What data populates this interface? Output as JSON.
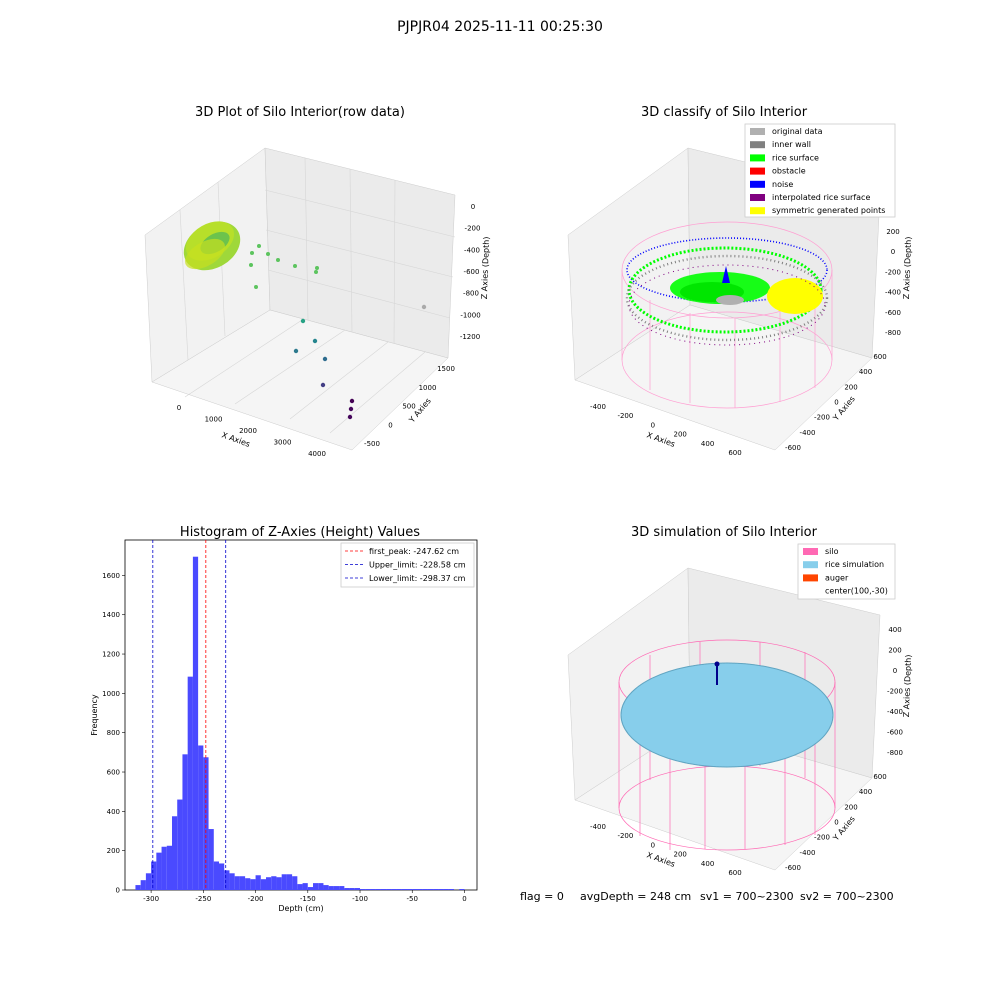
{
  "suptitle": "PJPJR04 2025-11-11 00:25:30",
  "colors": {
    "hist_bar": "#4a4aff",
    "peak_line": "#ff0000",
    "limit_line": "#0000cc",
    "silo": "#ff69b4",
    "rice": "#87ceeb",
    "auger": "#ff4500",
    "original": "#b0b0b0",
    "inner_wall": "#808080",
    "rice_surface": "#00ff00",
    "obstacle": "#ff0000",
    "noise": "#0000ff",
    "interpolated": "#800080",
    "symmetric": "#ffff00"
  },
  "panel1": {
    "title": "3D Plot of Silo Interior(row data)",
    "xlabel": "X Axies",
    "ylabel": "Y Axies",
    "zlabel": "Z Axies (Depth)",
    "xticks": [
      "0",
      "1000",
      "2000",
      "3000",
      "4000"
    ],
    "yticks": [
      "-500",
      "0",
      "500",
      "1000",
      "1500"
    ],
    "zticks": [
      "0",
      "-200",
      "-400",
      "-600",
      "-800",
      "-1000",
      "-1200"
    ]
  },
  "panel2": {
    "title": "3D classify of Silo Interior",
    "xlabel": "X Axies",
    "ylabel": "Y Axies",
    "zlabel": "Z Axies (Depth)",
    "xticks": [
      "-400",
      "-200",
      "0",
      "200",
      "400",
      "600"
    ],
    "yticks": [
      "-600",
      "-400",
      "-200",
      "0",
      "200",
      "400",
      "600"
    ],
    "zticks": [
      "200",
      "0",
      "-200",
      "-400",
      "-600",
      "-800"
    ],
    "legend": [
      "original data",
      "inner wall",
      "rice surface",
      "obstacle",
      "noise",
      "interpolated rice surface",
      "symmetric generated points"
    ],
    "legend_colors": [
      "#b0b0b0",
      "#808080",
      "#00ff00",
      "#ff0000",
      "#0000ff",
      "#800080",
      "#ffff00"
    ]
  },
  "panel4": {
    "title": "3D simulation of Silo Interior",
    "xlabel": "X Axies",
    "ylabel": "Y Axies",
    "zlabel": "Z Axies (Depth)",
    "xticks": [
      "-400",
      "-200",
      "0",
      "200",
      "400",
      "600"
    ],
    "yticks": [
      "-600",
      "-400",
      "-200",
      "0",
      "200",
      "400",
      "600"
    ],
    "zticks": [
      "400",
      "200",
      "0",
      "-200",
      "-400",
      "-600",
      "-800"
    ],
    "legend": [
      "silo",
      "rice simulation",
      "auger",
      "center(100,-30)"
    ],
    "legend_colors": [
      "#ff69b4",
      "#87ceeb",
      "#ff4500",
      ""
    ]
  },
  "status": {
    "flag": "flag = 0",
    "avg": "avgDepth = 248 cm",
    "sv1": "sv1 = 700~2300",
    "sv2": "sv2 = 700~2300"
  },
  "chart_data": [
    {
      "type": "bar",
      "title": "Histogram of Z-Axies (Height) Values",
      "xlabel": "Depth (cm)",
      "ylabel": "Frequency",
      "xlim": [
        -325,
        12
      ],
      "ylim": [
        0,
        1780
      ],
      "xticks": [
        -300,
        -250,
        -200,
        -150,
        -100,
        -50,
        0
      ],
      "yticks": [
        0,
        200,
        400,
        600,
        800,
        1000,
        1200,
        1400,
        1600
      ],
      "bin_width": 5,
      "bin_starts": [
        -315,
        -310,
        -305,
        -300,
        -295,
        -290,
        -285,
        -280,
        -275,
        -270,
        -265,
        -260,
        -255,
        -250,
        -245,
        -240,
        -235,
        -230,
        -225,
        -220,
        -215,
        -210,
        -205,
        -200,
        -195,
        -190,
        -185,
        -180,
        -175,
        -170,
        -165,
        -160,
        -155,
        -150,
        -145,
        -140,
        -135,
        -130,
        -125,
        -120,
        -115,
        -110,
        -105,
        -100,
        -95,
        -90,
        -85,
        -80,
        -75,
        -70,
        -65,
        -60,
        -55,
        -50,
        -45,
        -40,
        -35,
        -30,
        -25,
        -20,
        -15,
        -10,
        -5,
        0
      ],
      "values": [
        25,
        50,
        85,
        145,
        190,
        220,
        225,
        375,
        460,
        690,
        1085,
        1695,
        735,
        675,
        310,
        145,
        135,
        100,
        85,
        70,
        70,
        60,
        55,
        75,
        55,
        65,
        70,
        65,
        80,
        80,
        70,
        30,
        35,
        15,
        35,
        35,
        25,
        20,
        20,
        20,
        10,
        10,
        10,
        5,
        5,
        5,
        5,
        5,
        5,
        5,
        5,
        5,
        5,
        5,
        5,
        5,
        5,
        5,
        5,
        5,
        5,
        0,
        5,
        0
      ],
      "vlines": [
        {
          "label": "first_peak: -247.62 cm",
          "x": -247.62,
          "color": "#ff0000"
        },
        {
          "label": "Upper_limit: -228.58 cm",
          "x": -228.58,
          "color": "#0000cc"
        },
        {
          "label": "Lower_limit: -298.37 cm",
          "x": -298.37,
          "color": "#0000cc"
        }
      ]
    }
  ]
}
